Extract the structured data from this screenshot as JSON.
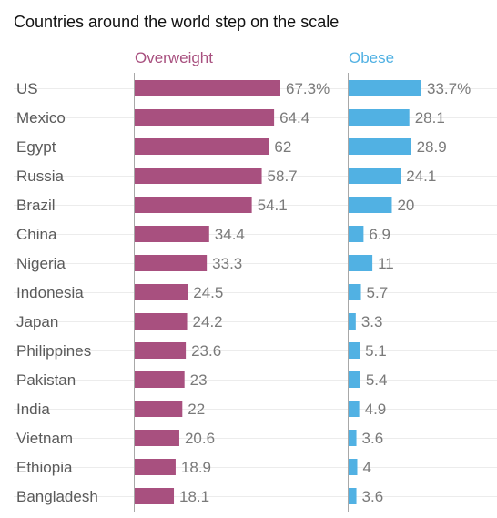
{
  "chart_data": {
    "type": "bar",
    "title": "Countries around the world step on the scale",
    "categories": [
      "US",
      "Mexico",
      "Egypt",
      "Russia",
      "Brazil",
      "China",
      "Nigeria",
      "Indonesia",
      "Japan",
      "Philippines",
      "Pakistan",
      "India",
      "Vietnam",
      "Ethiopia",
      "Bangladesh"
    ],
    "series": [
      {
        "name": "Overweight",
        "color": "#a8507f",
        "values": [
          67.3,
          64.4,
          62,
          58.7,
          54.1,
          34.4,
          33.3,
          24.5,
          24.2,
          23.6,
          23,
          22,
          20.6,
          18.9,
          18.1
        ],
        "labels": [
          "67.3%",
          "64.4",
          "62",
          "58.7",
          "54.1",
          "34.4",
          "33.3",
          "24.5",
          "24.2",
          "23.6",
          "23",
          "22",
          "20.6",
          "18.9",
          "18.1"
        ]
      },
      {
        "name": "Obese",
        "color": "#51b1e3",
        "values": [
          33.7,
          28.1,
          28.9,
          24.1,
          20,
          6.9,
          11,
          5.7,
          3.3,
          5.1,
          5.4,
          4.9,
          3.6,
          4,
          3.6
        ],
        "labels": [
          "33.7%",
          "28.1",
          "28.9",
          "24.1",
          "20",
          "6.9",
          "11",
          "5.7",
          "3.3",
          "5.1",
          "5.4",
          "4.9",
          "3.6",
          "4",
          "3.6"
        ]
      }
    ],
    "grid": true
  }
}
